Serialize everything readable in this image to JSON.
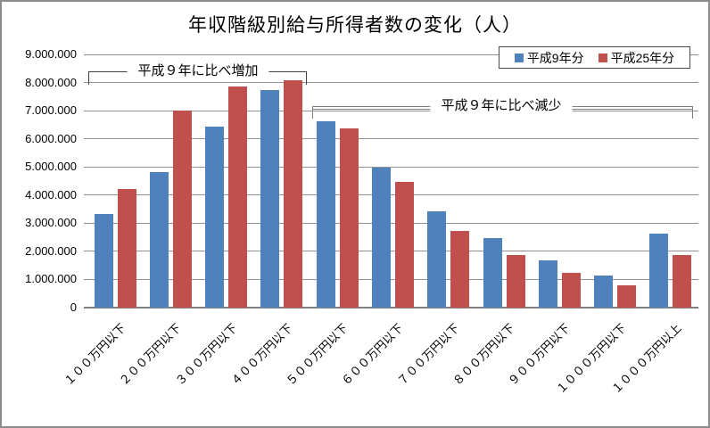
{
  "chart_data": {
    "type": "bar",
    "title": "年収階級別給与所得者数の変化（人）",
    "categories": [
      "１００万円以下",
      "２００万円以下",
      "３００万円以下",
      "４００万円以下",
      "５００万円以下",
      "６００万円以下",
      "７００万円以下",
      "８００万円以下",
      "９００万円以下",
      "１０００万円以下",
      "１０００万円以上"
    ],
    "series": [
      {
        "name": "平成9年分",
        "color": "#4F81BD",
        "values": [
          3330000,
          4820000,
          6430000,
          7730000,
          6630000,
          4980000,
          3430000,
          2460000,
          1670000,
          1150000,
          2630000
        ]
      },
      {
        "name": "平成25年分",
        "color": "#C0504D",
        "values": [
          4210000,
          7000000,
          7860000,
          8090000,
          6380000,
          4460000,
          2710000,
          1870000,
          1230000,
          790000,
          1860000
        ]
      }
    ],
    "ylim": [
      0,
      9000000
    ],
    "ytick_step": 1000000,
    "ytick_labels": [
      "0",
      "1.000.000",
      "2.000.000",
      "3.000.000",
      "4.000.000",
      "5.000.000",
      "6.000.000",
      "7.000.000",
      "8.000.000",
      "9.000.000"
    ],
    "grid": true,
    "legend_position": "top-right",
    "annotations": [
      {
        "text": "平成９年に比べ増加",
        "span_categories": [
          "１００万円以下",
          "４００万円以下"
        ]
      },
      {
        "text": "平成９年に比べ減少",
        "span_categories": [
          "５００万円以下",
          "１０００万円以上"
        ]
      }
    ],
    "colors": {
      "grid": "#919191",
      "axis": "#808080",
      "text": "#000000"
    }
  }
}
